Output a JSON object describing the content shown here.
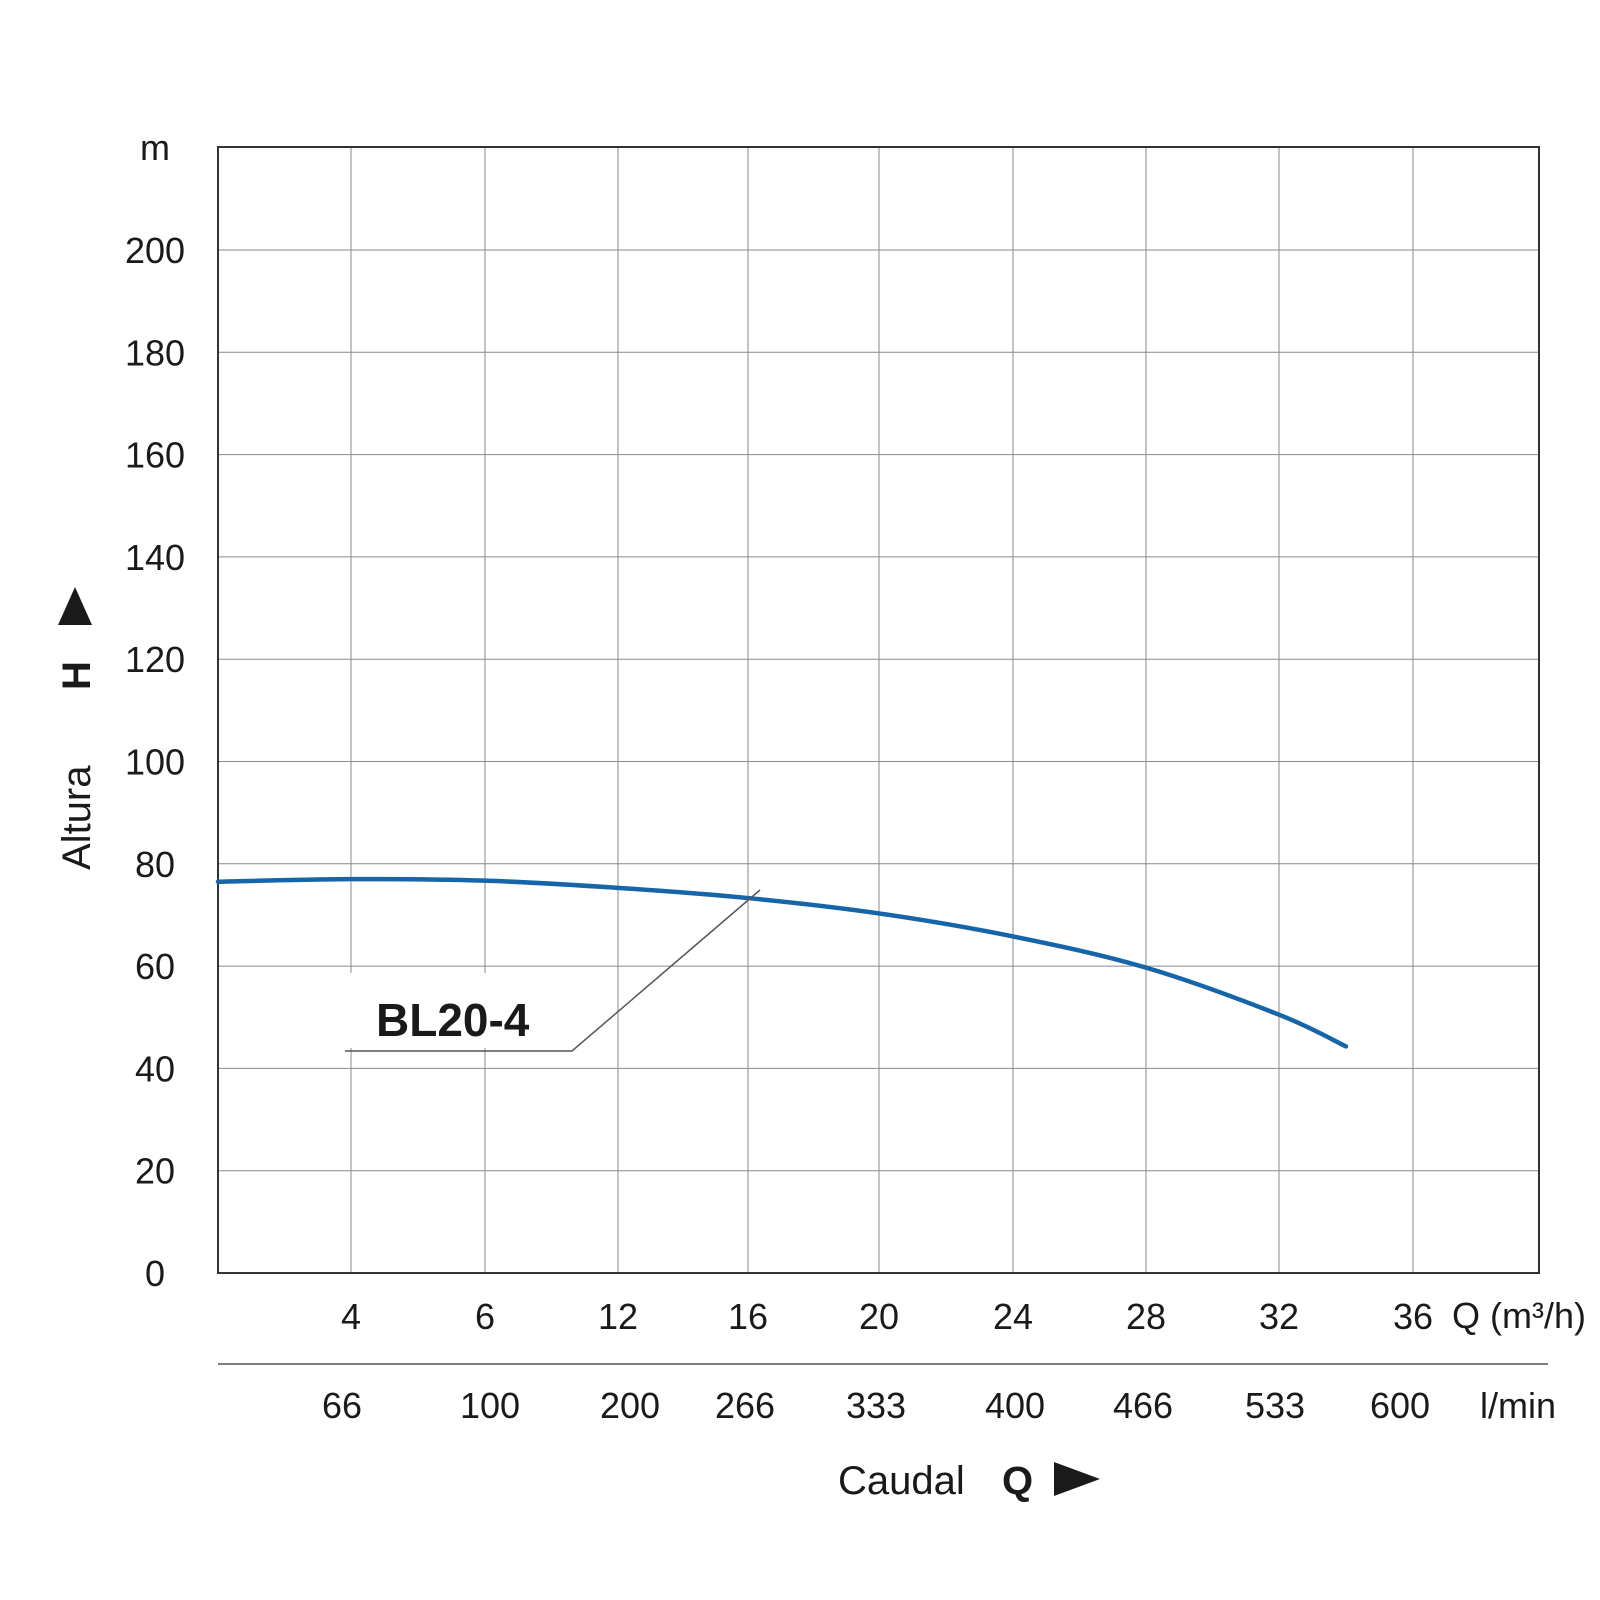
{
  "chart_data": {
    "type": "line",
    "title": "",
    "y_axis": {
      "unit": "m",
      "label_word": "Altura",
      "label_letter": "H",
      "range": [
        0,
        220
      ],
      "ticks": [
        0,
        20,
        40,
        60,
        80,
        100,
        120,
        140,
        160,
        180,
        200
      ],
      "tick_labels": [
        "0",
        "20",
        "40",
        "60",
        "80",
        "100",
        "120",
        "140",
        "160",
        "180",
        "200"
      ]
    },
    "x_axis": {
      "unit_primary": "Q (m³/h)",
      "unit_secondary": "l/min",
      "label_word": "Caudal",
      "label_letter": "Q",
      "ticks": [
        4,
        6,
        12,
        16,
        20,
        24,
        28,
        32,
        36
      ],
      "tick_labels_primary": [
        "4",
        "6",
        "12",
        "16",
        "20",
        "24",
        "28",
        "32",
        "36"
      ],
      "tick_labels_secondary": [
        "66",
        "100",
        "200",
        "266",
        "333",
        "400",
        "466",
        "533",
        "600"
      ]
    },
    "grid": true,
    "series": [
      {
        "name": "BL20-4",
        "color": "#1565a8",
        "points": [
          {
            "q": 0,
            "h": 76.5
          },
          {
            "q": 4,
            "h": 77
          },
          {
            "q": 6,
            "h": 76.7
          },
          {
            "q": 12,
            "h": 75.3
          },
          {
            "q": 16,
            "h": 73.3
          },
          {
            "q": 20,
            "h": 70.3
          },
          {
            "q": 24,
            "h": 65.8
          },
          {
            "q": 28,
            "h": 59.7
          },
          {
            "q": 32,
            "h": 50.5
          },
          {
            "q": 34,
            "h": 44.3
          }
        ]
      }
    ]
  }
}
